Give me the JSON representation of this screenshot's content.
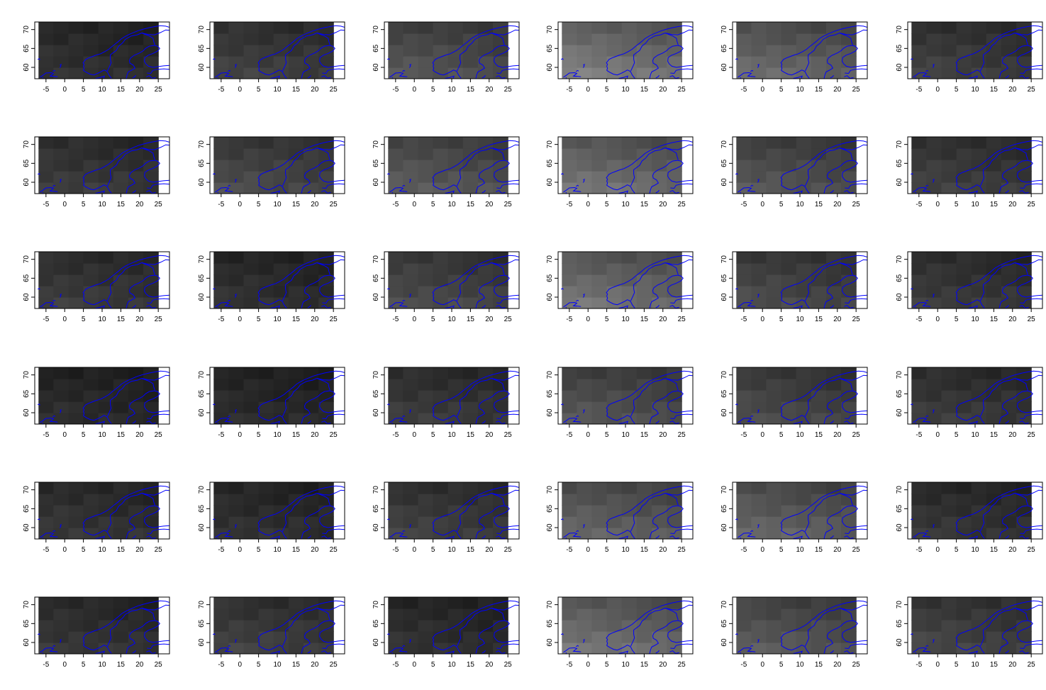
{
  "chart_data": {
    "type": "heatmap",
    "panel_count": 36,
    "grid": {
      "rows": 6,
      "cols": 6
    },
    "xlim": [
      -8,
      28
    ],
    "ylim": [
      57,
      72
    ],
    "x_ticks": [
      -5,
      0,
      5,
      10,
      15,
      20,
      25
    ],
    "y_ticks": [
      60,
      65,
      70
    ],
    "x_tick_labels": [
      "-5",
      "0",
      "5",
      "10",
      "15",
      "20",
      "25"
    ],
    "y_tick_labels": [
      "60",
      "65",
      "70"
    ],
    "data_extent": {
      "x": [
        -7,
        25
      ],
      "y": [
        57,
        72
      ]
    },
    "colormap": "grayscale",
    "overlay": {
      "type": "coastline",
      "color": "#0000ff"
    },
    "title": "",
    "xlabel": "",
    "ylabel": "",
    "panel_brightness": [
      [
        0.2,
        0.26,
        0.34,
        0.5,
        0.42,
        0.26
      ],
      [
        0.24,
        0.3,
        0.36,
        0.46,
        0.34,
        0.26
      ],
      [
        0.24,
        0.2,
        0.3,
        0.46,
        0.3,
        0.24
      ],
      [
        0.18,
        0.18,
        0.24,
        0.34,
        0.3,
        0.24
      ],
      [
        0.22,
        0.2,
        0.26,
        0.4,
        0.4,
        0.22
      ],
      [
        0.22,
        0.26,
        0.2,
        0.46,
        0.36,
        0.28
      ]
    ]
  },
  "colors": {
    "background": "#ffffff",
    "coastline": "#0000ff",
    "axis": "#000000"
  }
}
